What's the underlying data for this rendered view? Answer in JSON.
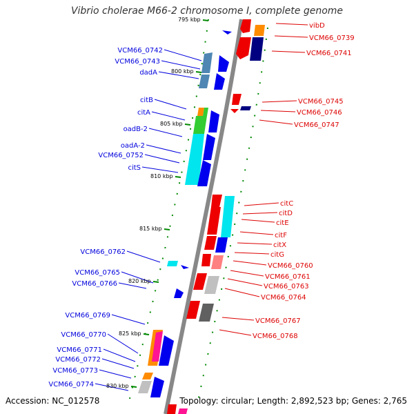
{
  "title": "Vibrio cholerae M66-2 chromosome I, complete genome",
  "footer": {
    "accession": "Accession: NC_012578",
    "summary": "Topology: circular; Length: 2,892,523 bp; Genes: 2,765"
  },
  "colors": {
    "forward_label": "#0000dd",
    "reverse_label": "#dd0000",
    "tick": "#008800",
    "backbone": "#888888"
  },
  "ruler_ticks": [
    "795 kbp",
    "800 kbp",
    "805 kbp",
    "810 kbp",
    "815 kbp",
    "820 kbp",
    "825 kbp",
    "830 kbp"
  ],
  "forward_genes": [
    "VCM66_0742",
    "VCM66_0743",
    "dadA",
    "citB",
    "citA",
    "oadB-2",
    "oadA-2",
    "VCM66_0752",
    "citS",
    "VCM66_0762",
    "VCM66_0765",
    "VCM66_0766",
    "VCM66_0769",
    "VCM66_0770",
    "VCM66_0771",
    "VCM66_0772",
    "VCM66_0773",
    "VCM66_0774"
  ],
  "reverse_genes": [
    "vibD",
    "VCM66_0739",
    "VCM66_0741",
    "VCM66_0745",
    "VCM66_0746",
    "VCM66_0747",
    "citC",
    "citD",
    "citE",
    "citF",
    "citX",
    "citG",
    "VCM66_0760",
    "VCM66_0761",
    "VCM66_0763",
    "VCM66_0764",
    "VCM66_0767",
    "VCM66_0768"
  ]
}
